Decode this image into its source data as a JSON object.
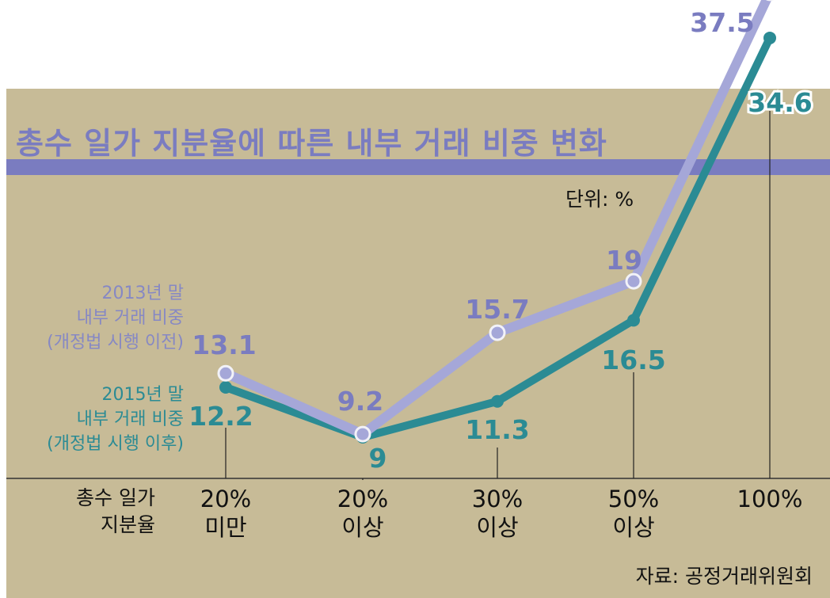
{
  "chart_data": {
    "type": "line",
    "title": "총수 일가 지분율에 따른 내부 거래 비중 변화",
    "unit": "단위: %",
    "xlabel": "총수 일가\n지분율",
    "categories": [
      "20%\n미만",
      "20%\n이상",
      "30%\n이상",
      "50%\n이상",
      "100%"
    ],
    "series": [
      {
        "name": "2013년 말\n내부 거래 비중\n(개정법 시행 이전)",
        "color": "#a5a7d8",
        "label_color": "#7a7cc0",
        "values": [
          13.1,
          9.2,
          15.7,
          19,
          37.5
        ],
        "labels": [
          "13.1",
          "9.2",
          "15.7",
          "19",
          "37.5"
        ]
      },
      {
        "name": "2015년 말\n내부 거래 비중\n(개정법 시행 이후)",
        "color": "#2b8b94",
        "label_color": "#2b8b94",
        "values": [
          12.2,
          9,
          11.3,
          16.5,
          34.6
        ],
        "labels": [
          "12.2",
          "9",
          "11.3",
          "16.5",
          "34.6"
        ]
      }
    ],
    "source": "자료: 공정거래위원회",
    "grid": false
  }
}
